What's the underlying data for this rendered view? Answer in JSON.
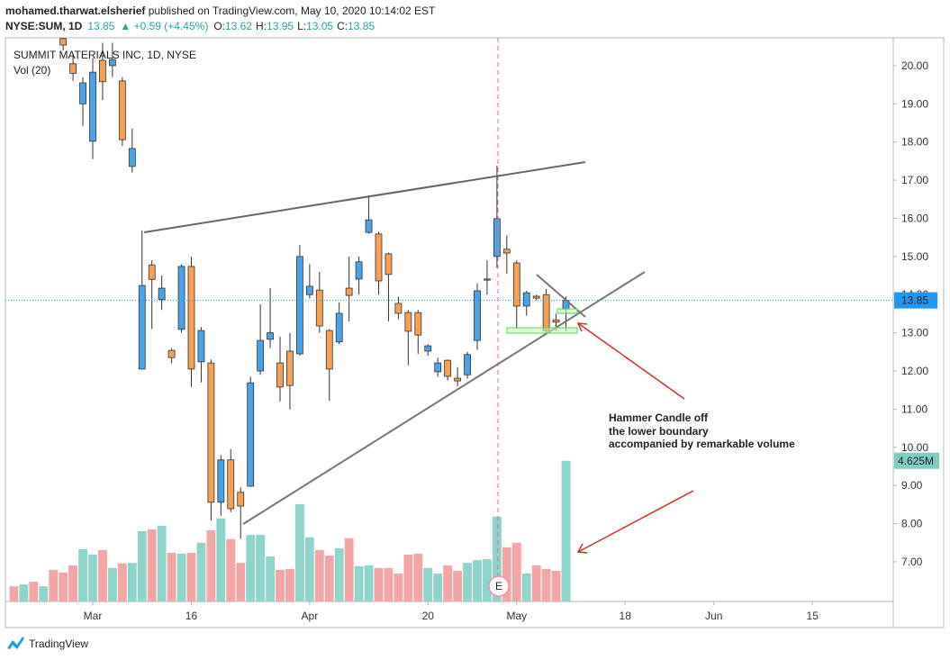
{
  "header": {
    "author": "mohamed.tharwat.elsherief",
    "published": " published on TradingView.com, May 10, 2020 10:14:02 EST",
    "symbol": "NYSE:SUM, 1D",
    "last": "13.85",
    "change": "▲ +0.59 (+4.45%)",
    "ohlc": [
      {
        "label": "O:",
        "value": "13.62"
      },
      {
        "label": "H:",
        "value": "13.95"
      },
      {
        "label": "L:",
        "value": "13.05"
      },
      {
        "label": "C:",
        "value": "13.85"
      }
    ]
  },
  "footer": {
    "brand": "TradingView"
  },
  "chart_data": {
    "type": "candlestick",
    "title": "SUMMIT MATERIALS INC, 1D, NYSE",
    "volume_title": "Vol (20)",
    "up_color": "#4aa3e6",
    "down_color": "#f6a055",
    "xlim": [
      -8.86,
      81.2
    ],
    "xticks": [
      {
        "value": 0,
        "label": "Mar"
      },
      {
        "value": 10,
        "label": "16"
      },
      {
        "value": 22,
        "label": "Apr"
      },
      {
        "value": 34,
        "label": "20"
      },
      {
        "value": 43,
        "label": "May"
      },
      {
        "value": 54,
        "label": "18"
      },
      {
        "value": 63,
        "label": "Jun"
      },
      {
        "value": 73,
        "label": "15"
      }
    ],
    "ylim": [
      5.96,
      20.73
    ],
    "yticks": [
      {
        "value": 7,
        "label": "7.00"
      },
      {
        "value": 8,
        "label": "8.00"
      },
      {
        "value": 9,
        "label": "9.00"
      },
      {
        "value": 10,
        "label": "10.00"
      },
      {
        "value": 11,
        "label": "11.00"
      },
      {
        "value": 12,
        "label": "12.00"
      },
      {
        "value": 13,
        "label": "13.00"
      },
      {
        "value": 14,
        "label": "14.00"
      },
      {
        "value": 15,
        "label": "15.00"
      },
      {
        "value": 16,
        "label": "16.00"
      },
      {
        "value": 17,
        "label": "17.00"
      },
      {
        "value": 18,
        "label": "18.00"
      },
      {
        "value": 19,
        "label": "19.00"
      },
      {
        "value": 20,
        "label": "20.00"
      }
    ],
    "x": [
      -3,
      -2,
      -1,
      0,
      1,
      2,
      3,
      4,
      5,
      6,
      7,
      8,
      9,
      10,
      11,
      12,
      13,
      14,
      15,
      16,
      17,
      18,
      19,
      20,
      21,
      22,
      23,
      24,
      25,
      26,
      27,
      28,
      29,
      30,
      31,
      32,
      33,
      34,
      35,
      36,
      37,
      38,
      39,
      40,
      41,
      42,
      43,
      44,
      45,
      46,
      47,
      48
    ],
    "open": [
      20.71,
      20.05,
      19.0,
      18.02,
      20.14,
      20.0,
      19.6,
      17.36,
      12.05,
      14.78,
      13.87,
      12.54,
      13.09,
      14.74,
      12.24,
      12.21,
      8.56,
      9.67,
      8.82,
      8.98,
      12.0,
      12.83,
      12.21,
      12.52,
      12.45,
      14.0,
      14.12,
      13.06,
      12.76,
      14.17,
      14.41,
      15.63,
      15.59,
      15.07,
      13.77,
      13.53,
      13.53,
      12.52,
      11.98,
      12.28,
      11.81,
      11.9,
      12.8,
      14.38,
      15.0,
      15.19,
      14.83,
      13.7,
      13.96,
      14.0,
      13.34,
      13.62
    ],
    "high": [
      20.9,
      20.3,
      19.7,
      20.2,
      20.6,
      20.6,
      19.7,
      18.35,
      15.68,
      14.9,
      14.5,
      12.6,
      14.8,
      15.0,
      13.15,
      12.3,
      9.8,
      9.95,
      8.95,
      11.85,
      13.75,
      14.17,
      12.9,
      13.0,
      15.3,
      14.8,
      14.6,
      13.1,
      13.8,
      15.0,
      15.0,
      16.6,
      15.65,
      15.1,
      13.95,
      13.6,
      13.6,
      12.7,
      12.35,
      12.3,
      12.1,
      12.5,
      14.3,
      14.9,
      17.38,
      15.55,
      14.9,
      14.1,
      14.0,
      14.15,
      13.5,
      13.95
    ],
    "low": [
      20.4,
      19.6,
      18.42,
      17.55,
      19.1,
      19.7,
      17.9,
      17.2,
      12.05,
      13.1,
      13.6,
      12.2,
      13.0,
      11.58,
      11.7,
      8.08,
      8.2,
      8.3,
      7.6,
      8.98,
      11.9,
      12.6,
      11.2,
      10.99,
      12.4,
      13.9,
      13.0,
      11.22,
      12.7,
      13.3,
      14.0,
      15.6,
      14.0,
      13.3,
      13.35,
      12.15,
      12.45,
      12.4,
      11.85,
      11.75,
      11.6,
      11.8,
      12.55,
      14.0,
      14.7,
      14.55,
      13.1,
      13.45,
      13.85,
      13.0,
      13.05,
      13.05
    ],
    "close": [
      20.54,
      19.8,
      19.55,
      19.83,
      19.58,
      20.16,
      18.06,
      17.83,
      14.24,
      14.4,
      14.17,
      12.35,
      14.74,
      12.05,
      13.06,
      8.56,
      9.67,
      8.39,
      8.46,
      11.69,
      12.8,
      13.0,
      11.58,
      11.62,
      15.0,
      14.22,
      13.18,
      12.05,
      13.51,
      13.98,
      14.86,
      15.96,
      14.36,
      14.53,
      13.51,
      13.04,
      12.94,
      12.66,
      12.21,
      11.86,
      11.74,
      12.43,
      14.1,
      14.41,
      15.99,
      15.09,
      13.7,
      14.05,
      13.91,
      13.06,
      13.28,
      13.85
    ],
    "last_price": 13.85,
    "price_line_color": "#2196f3",
    "volume": {
      "vlim": [
        0,
        18.53
      ],
      "last_label": "4.625M",
      "label_color": "#7fcdc2",
      "x": [
        -8,
        -7,
        -6,
        -5,
        -4,
        -3,
        -2,
        -1,
        0,
        1,
        2,
        3,
        4,
        5,
        6,
        7,
        8,
        9,
        10,
        11,
        12,
        13,
        14,
        15,
        16,
        17,
        18,
        19,
        20,
        21,
        22,
        23,
        24,
        25,
        26,
        27,
        28,
        29,
        30,
        31,
        32,
        33,
        34,
        35,
        36,
        37,
        38,
        39,
        40,
        41,
        42,
        43,
        44,
        45,
        46,
        47,
        48
      ],
      "values": [
        0.5,
        0.56,
        0.65,
        0.5,
        1.04,
        0.95,
        1.19,
        1.72,
        1.54,
        1.69,
        1.1,
        1.25,
        1.27,
        2.31,
        2.37,
        2.49,
        1.6,
        1.57,
        1.6,
        1.93,
        2.34,
        2.73,
        2.05,
        1.27,
        2.19,
        2.19,
        1.48,
        1.04,
        1.07,
        3.2,
        2.11,
        1.69,
        1.51,
        1.75,
        2.08,
        1.16,
        1.19,
        1.1,
        1.1,
        0.92,
        1.54,
        1.57,
        1.1,
        0.92,
        1.19,
        1.01,
        1.27,
        1.36,
        1.39,
        2.79,
        1.78,
        1.93,
        0.92,
        1.19,
        1.07,
        1.01,
        4.625
      ],
      "colors": [
        "#f4a6a6",
        "#8fd4cb",
        "#f4a6a6",
        "#8fd4cb",
        "#f4a6a6",
        "#f4a6a6",
        "#f4a6a6",
        "#8fd4cb",
        "#8fd4cb",
        "#f4a6a6",
        "#8fd4cb",
        "#f4a6a6",
        "#8fd4cb",
        "#8fd4cb",
        "#f4a6a6",
        "#8fd4cb",
        "#f4a6a6",
        "#8fd4cb",
        "#f4a6a6",
        "#8fd4cb",
        "#f4a6a6",
        "#8fd4cb",
        "#f4a6a6",
        "#f4a6a6",
        "#8fd4cb",
        "#8fd4cb",
        "#8fd4cb",
        "#f4a6a6",
        "#f4a6a6",
        "#8fd4cb",
        "#8fd4cb",
        "#f4a6a6",
        "#f4a6a6",
        "#8fd4cb",
        "#f4a6a6",
        "#8fd4cb",
        "#8fd4cb",
        "#f4a6a6",
        "#f4a6a6",
        "#f4a6a6",
        "#f4a6a6",
        "#f4a6a6",
        "#8fd4cb",
        "#8fd4cb",
        "#f4a6a6",
        "#f4a6a6",
        "#8fd4cb",
        "#8fd4cb",
        "#8fd4cb",
        "#8fd4cb",
        "#f4a6a6",
        "#f4a6a6",
        "#8fd4cb",
        "#f4a6a6",
        "#f4a6a6",
        "#f4a6a6",
        "#8fd4cb"
      ]
    },
    "earnings_marker": "E",
    "annotation": [
      "Hammer Candle off",
      "the lower boundary",
      "accompanied by remarkable volume"
    ]
  }
}
